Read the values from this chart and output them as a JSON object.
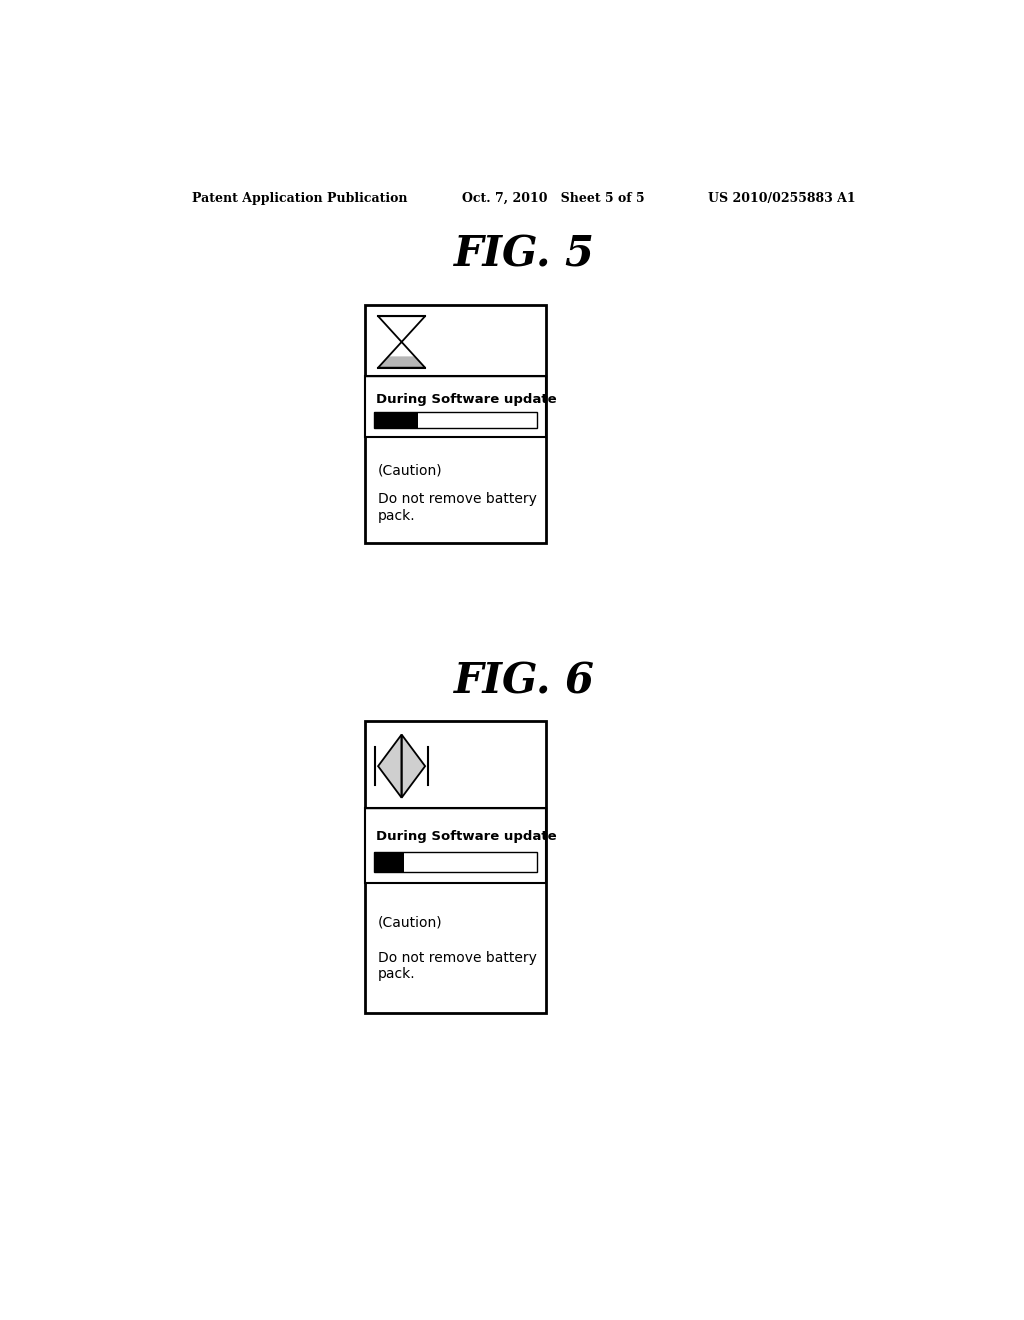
{
  "bg_color": "#ffffff",
  "header_left": "Patent Application Publication",
  "header_mid": "Oct. 7, 2010   Sheet 5 of 5",
  "header_right": "US 2010/0255883 A1",
  "fig5_title": "FIG. 5",
  "fig6_title": "FIG. 6",
  "caution_text": "(Caution)",
  "body_text": "Do not remove battery\npack.",
  "progress_text": "During Software update",
  "progress_fill_fig5": 0.27,
  "progress_fill_fig6": 0.18
}
